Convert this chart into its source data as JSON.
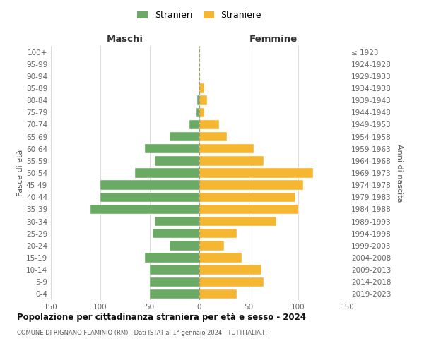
{
  "age_groups": [
    "0-4",
    "5-9",
    "10-14",
    "15-19",
    "20-24",
    "25-29",
    "30-34",
    "35-39",
    "40-44",
    "45-49",
    "50-54",
    "55-59",
    "60-64",
    "65-69",
    "70-74",
    "75-79",
    "80-84",
    "85-89",
    "90-94",
    "95-99",
    "100+"
  ],
  "birth_years": [
    "2019-2023",
    "2014-2018",
    "2009-2013",
    "2004-2008",
    "1999-2003",
    "1994-1998",
    "1989-1993",
    "1984-1988",
    "1979-1983",
    "1974-1978",
    "1969-1973",
    "1964-1968",
    "1959-1963",
    "1954-1958",
    "1949-1953",
    "1944-1948",
    "1939-1943",
    "1934-1938",
    "1929-1933",
    "1924-1928",
    "≤ 1923"
  ],
  "males": [
    50,
    50,
    50,
    55,
    30,
    47,
    45,
    110,
    100,
    100,
    65,
    45,
    55,
    30,
    10,
    3,
    2,
    0,
    0,
    0,
    0
  ],
  "females": [
    38,
    65,
    63,
    43,
    25,
    38,
    78,
    100,
    97,
    105,
    115,
    65,
    55,
    28,
    20,
    5,
    8,
    5,
    0,
    0,
    0
  ],
  "male_color": "#6aaa64",
  "female_color": "#f5b731",
  "background_color": "#ffffff",
  "grid_color": "#cccccc",
  "title": "Popolazione per cittadinanza straniera per età e sesso - 2024",
  "subtitle": "COMUNE DI RIGNANO FLAMINIO (RM) - Dati ISTAT al 1° gennaio 2024 - TUTTITALIA.IT",
  "header_left": "Maschi",
  "header_right": "Femmine",
  "ylabel_left": "Fasce di età",
  "ylabel_right": "Anni di nascita",
  "legend_stranieri": "Stranieri",
  "legend_straniere": "Straniere",
  "xlim": 150
}
